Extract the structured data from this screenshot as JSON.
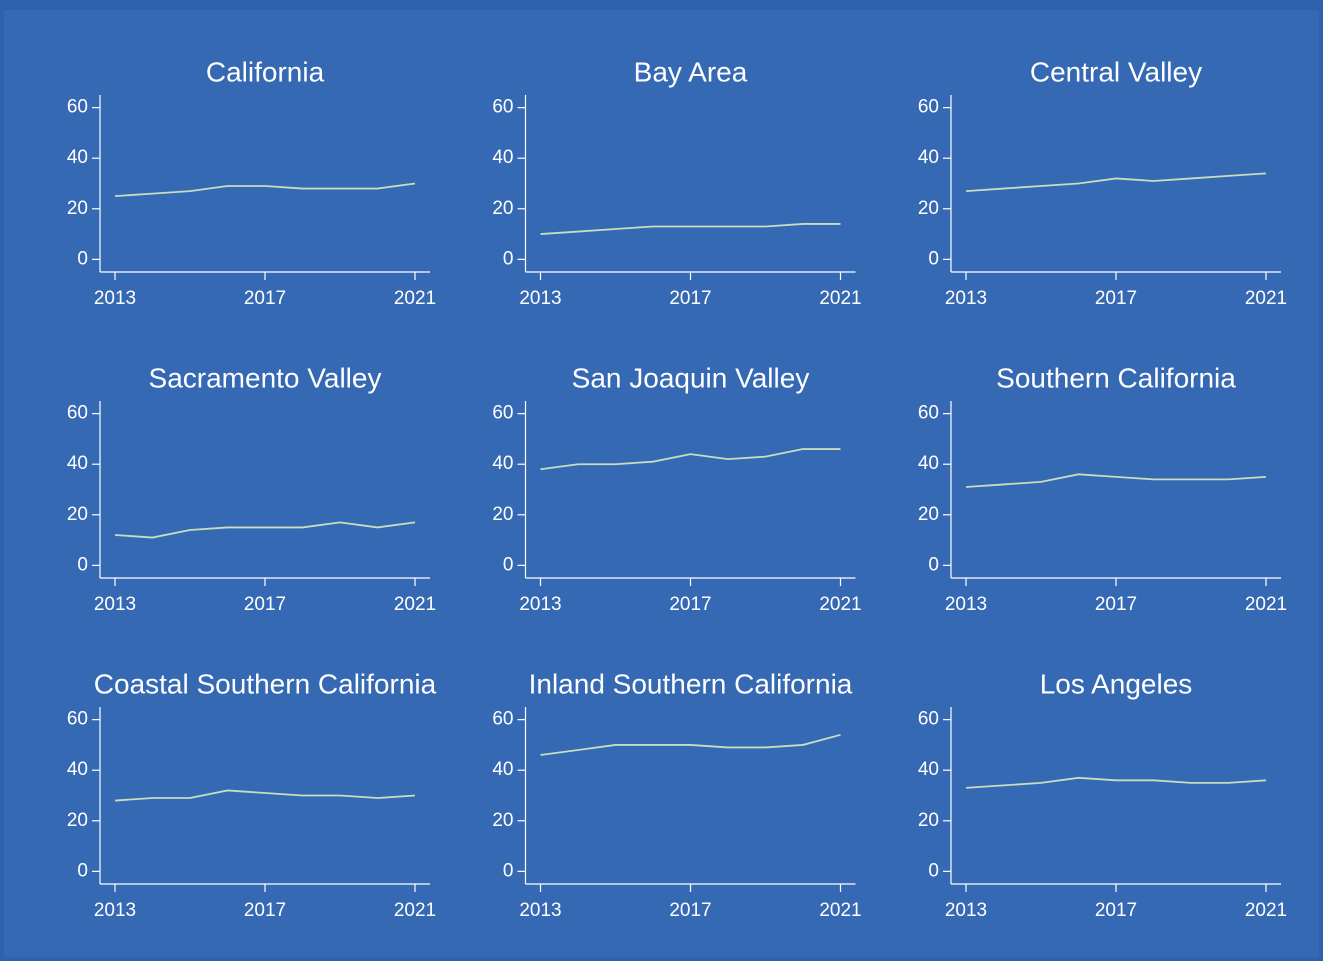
{
  "chart_data": [
    {
      "type": "line",
      "title": "California",
      "x": [
        2013,
        2014,
        2015,
        2016,
        2017,
        2018,
        2019,
        2020,
        2021
      ],
      "series": [
        {
          "color": "#c8dcc0",
          "values": [
            25,
            26,
            27,
            29,
            29,
            28,
            28,
            28,
            30
          ]
        }
      ],
      "xlim": [
        2012.6,
        2021.4
      ],
      "ylim": [
        -5,
        65
      ],
      "xticks": [
        2013,
        2017,
        2021
      ],
      "yticks": [
        0,
        20,
        40,
        60
      ]
    },
    {
      "type": "line",
      "title": "Bay Area",
      "x": [
        2013,
        2014,
        2015,
        2016,
        2017,
        2018,
        2019,
        2020,
        2021
      ],
      "series": [
        {
          "color": "#c8dcc0",
          "values": [
            10,
            11,
            12,
            13,
            13,
            13,
            13,
            14,
            14
          ]
        }
      ],
      "xlim": [
        2012.6,
        2021.4
      ],
      "ylim": [
        -5,
        65
      ],
      "xticks": [
        2013,
        2017,
        2021
      ],
      "yticks": [
        0,
        20,
        40,
        60
      ]
    },
    {
      "type": "line",
      "title": "Central Valley",
      "x": [
        2013,
        2014,
        2015,
        2016,
        2017,
        2018,
        2019,
        2020,
        2021
      ],
      "series": [
        {
          "color": "#c8dcc0",
          "values": [
            27,
            28,
            29,
            30,
            32,
            31,
            32,
            33,
            34
          ]
        }
      ],
      "xlim": [
        2012.6,
        2021.4
      ],
      "ylim": [
        -5,
        65
      ],
      "xticks": [
        2013,
        2017,
        2021
      ],
      "yticks": [
        0,
        20,
        40,
        60
      ]
    },
    {
      "type": "line",
      "title": "Sacramento Valley",
      "x": [
        2013,
        2014,
        2015,
        2016,
        2017,
        2018,
        2019,
        2020,
        2021
      ],
      "series": [
        {
          "color": "#c8dcc0",
          "values": [
            12,
            11,
            14,
            15,
            15,
            15,
            17,
            15,
            17
          ]
        }
      ],
      "xlim": [
        2012.6,
        2021.4
      ],
      "ylim": [
        -5,
        65
      ],
      "xticks": [
        2013,
        2017,
        2021
      ],
      "yticks": [
        0,
        20,
        40,
        60
      ]
    },
    {
      "type": "line",
      "title": "San Joaquin Valley",
      "x": [
        2013,
        2014,
        2015,
        2016,
        2017,
        2018,
        2019,
        2020,
        2021
      ],
      "series": [
        {
          "color": "#c8dcc0",
          "values": [
            38,
            40,
            40,
            41,
            44,
            42,
            43,
            46,
            46
          ]
        }
      ],
      "xlim": [
        2012.6,
        2021.4
      ],
      "ylim": [
        -5,
        65
      ],
      "xticks": [
        2013,
        2017,
        2021
      ],
      "yticks": [
        0,
        20,
        40,
        60
      ]
    },
    {
      "type": "line",
      "title": "Southern California",
      "x": [
        2013,
        2014,
        2015,
        2016,
        2017,
        2018,
        2019,
        2020,
        2021
      ],
      "series": [
        {
          "color": "#c8dcc0",
          "values": [
            31,
            32,
            33,
            36,
            35,
            34,
            34,
            34,
            35
          ]
        }
      ],
      "xlim": [
        2012.6,
        2021.4
      ],
      "ylim": [
        -5,
        65
      ],
      "xticks": [
        2013,
        2017,
        2021
      ],
      "yticks": [
        0,
        20,
        40,
        60
      ]
    },
    {
      "type": "line",
      "title": "Coastal Southern California",
      "x": [
        2013,
        2014,
        2015,
        2016,
        2017,
        2018,
        2019,
        2020,
        2021
      ],
      "series": [
        {
          "color": "#c8dcc0",
          "values": [
            28,
            29,
            29,
            32,
            31,
            30,
            30,
            29,
            30
          ]
        }
      ],
      "xlim": [
        2012.6,
        2021.4
      ],
      "ylim": [
        -5,
        65
      ],
      "xticks": [
        2013,
        2017,
        2021
      ],
      "yticks": [
        0,
        20,
        40,
        60
      ]
    },
    {
      "type": "line",
      "title": "Inland Southern California",
      "x": [
        2013,
        2014,
        2015,
        2016,
        2017,
        2018,
        2019,
        2020,
        2021
      ],
      "series": [
        {
          "color": "#c8dcc0",
          "values": [
            46,
            48,
            50,
            50,
            50,
            49,
            49,
            50,
            54
          ]
        }
      ],
      "xlim": [
        2012.6,
        2021.4
      ],
      "ylim": [
        -5,
        65
      ],
      "xticks": [
        2013,
        2017,
        2021
      ],
      "yticks": [
        0,
        20,
        40,
        60
      ]
    },
    {
      "type": "line",
      "title": "Los Angeles",
      "x": [
        2013,
        2014,
        2015,
        2016,
        2017,
        2018,
        2019,
        2020,
        2021
      ],
      "series": [
        {
          "color": "#c8dcc0",
          "values": [
            33,
            34,
            35,
            37,
            36,
            36,
            35,
            35,
            36
          ]
        }
      ],
      "xlim": [
        2012.6,
        2021.4
      ],
      "ylim": [
        -5,
        65
      ],
      "xticks": [
        2013,
        2017,
        2021
      ],
      "yticks": [
        0,
        20,
        40,
        60
      ]
    }
  ]
}
